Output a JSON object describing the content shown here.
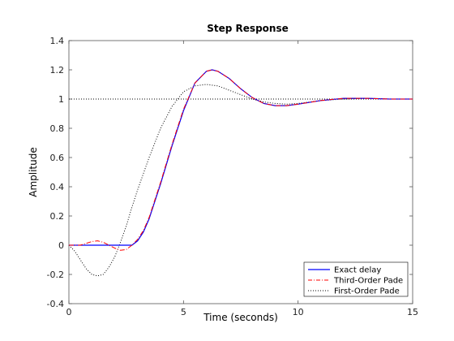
{
  "chart_data": {
    "type": "line",
    "title": "Step Response",
    "xlabel": "Time (seconds)",
    "ylabel": "Amplitude",
    "xlim": [
      0,
      15
    ],
    "ylim": [
      -0.4,
      1.4
    ],
    "xticks": [
      0,
      5,
      10,
      15
    ],
    "yticks": [
      -0.4,
      -0.2,
      0,
      0.2,
      0.4,
      0.6,
      0.8,
      1,
      1.2,
      1.4
    ],
    "grid": false,
    "legend_position": "bottom-right",
    "reference_line": {
      "y": 1,
      "style": "dotted",
      "color": "#000000"
    },
    "series": [
      {
        "name": "Exact delay",
        "color": "#0000ff",
        "style": "solid",
        "x": [
          0,
          2.5,
          2.75,
          3.0,
          3.25,
          3.5,
          4.0,
          4.5,
          5.0,
          5.5,
          6.0,
          6.25,
          6.5,
          7.0,
          7.5,
          8.0,
          8.5,
          9.0,
          9.5,
          10.0,
          11.0,
          12.0,
          13.0,
          14.0,
          15.0
        ],
        "y": [
          0,
          0,
          0.0,
          0.03,
          0.09,
          0.18,
          0.42,
          0.68,
          0.92,
          1.11,
          1.19,
          1.2,
          1.19,
          1.14,
          1.07,
          1.01,
          0.97,
          0.955,
          0.955,
          0.965,
          0.99,
          1.005,
          1.005,
          1.0,
          1.0
        ]
      },
      {
        "name": "Third-Order Pade",
        "color": "#ff0000",
        "style": "dashdot",
        "x": [
          0,
          0.5,
          1.0,
          1.25,
          1.5,
          2.0,
          2.25,
          2.5,
          2.75,
          3.0,
          3.25,
          3.5,
          4.0,
          4.5,
          5.0,
          5.5,
          6.0,
          6.25,
          6.5,
          7.0,
          7.5,
          8.0,
          8.5,
          9.0,
          9.5,
          10.0,
          11.0,
          12.0,
          13.0,
          14.0,
          15.0
        ],
        "y": [
          0,
          0.0,
          0.025,
          0.03,
          0.02,
          -0.02,
          -0.035,
          -0.03,
          0.0,
          0.04,
          0.1,
          0.19,
          0.43,
          0.69,
          0.93,
          1.11,
          1.19,
          1.2,
          1.19,
          1.14,
          1.07,
          1.01,
          0.97,
          0.955,
          0.955,
          0.965,
          0.99,
          1.005,
          1.005,
          1.0,
          1.0
        ]
      },
      {
        "name": "First-Order Pade",
        "color": "#000000",
        "style": "dotted",
        "x": [
          0,
          0.25,
          0.5,
          0.75,
          1.0,
          1.25,
          1.5,
          1.75,
          2.0,
          2.25,
          2.5,
          2.75,
          3.0,
          3.5,
          4.0,
          4.5,
          5.0,
          5.5,
          6.0,
          6.5,
          7.0,
          7.5,
          8.0,
          8.5,
          9.0,
          9.5,
          10.0,
          11.0,
          12.0,
          13.0,
          14.0,
          15.0
        ],
        "y": [
          0,
          -0.04,
          -0.1,
          -0.16,
          -0.2,
          -0.21,
          -0.2,
          -0.15,
          -0.08,
          0.02,
          0.13,
          0.26,
          0.38,
          0.6,
          0.8,
          0.95,
          1.05,
          1.09,
          1.1,
          1.09,
          1.06,
          1.03,
          1.0,
          0.98,
          0.97,
          0.965,
          0.97,
          0.99,
          1.0,
          1.005,
          1.0,
          1.0
        ]
      }
    ]
  }
}
